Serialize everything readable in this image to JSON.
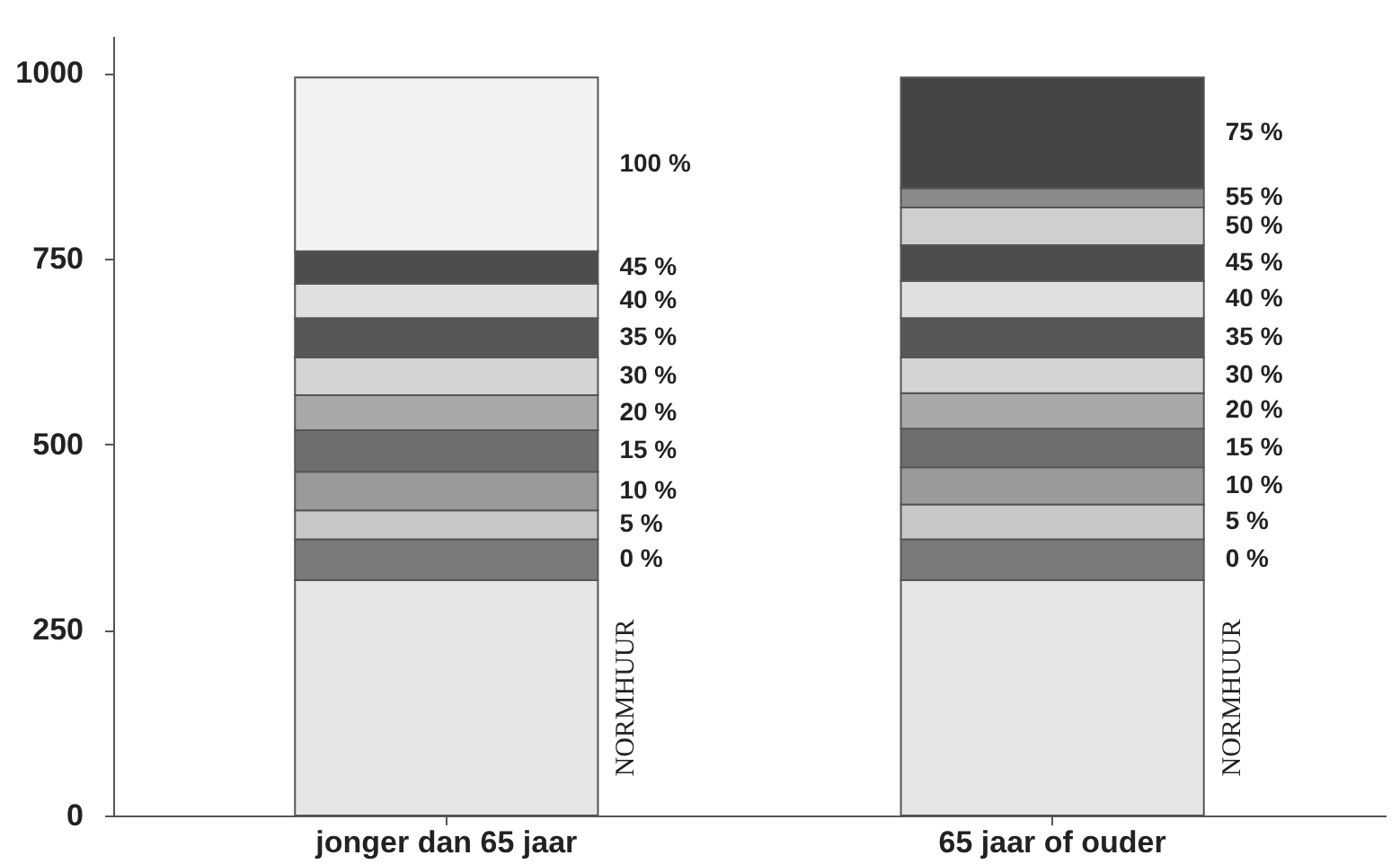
{
  "chart_data": {
    "type": "bar",
    "stacked": true,
    "categories": [
      "jonger dan 65 jaar",
      "65 jaar of ouder"
    ],
    "series": [
      {
        "name": "NORMHUUR",
        "color": "#e6e6e6",
        "values": [
          317,
          317
        ]
      },
      {
        "name": "0 %",
        "color": "#7a7a7a",
        "values": [
          55,
          55
        ]
      },
      {
        "name": "5 %",
        "color": "#c8c8c8",
        "values": [
          39,
          47
        ]
      },
      {
        "name": "10 %",
        "color": "#9a9a9a",
        "values": [
          52,
          50
        ]
      },
      {
        "name": "15 %",
        "color": "#6e6e6e",
        "values": [
          56,
          52
        ]
      },
      {
        "name": "20 %",
        "color": "#a8a8a8",
        "values": [
          47,
          48
        ]
      },
      {
        "name": "30 %",
        "color": "#d4d4d4",
        "values": [
          51,
          48
        ]
      },
      {
        "name": "35 %",
        "color": "#575757",
        "values": [
          53,
          53
        ]
      },
      {
        "name": "40 %",
        "color": "#e0e0e0",
        "values": [
          46,
          50
        ]
      },
      {
        "name": "45 %",
        "color": "#4d4d4d",
        "values": [
          44,
          48
        ]
      },
      {
        "name": "50 %",
        "color": "#cfcfcf",
        "values": [
          null,
          51
        ]
      },
      {
        "name": "55 %",
        "color": "#8a8a8a",
        "values": [
          null,
          26
        ]
      },
      {
        "name": "75 %",
        "color": "#454545",
        "values": [
          null,
          149
        ]
      },
      {
        "name": "100 %",
        "color": "#f2f2f2",
        "values": [
          234,
          null
        ]
      }
    ],
    "ylim": [
      0,
      1050
    ],
    "yticks": [
      0,
      250,
      500,
      750,
      1000
    ],
    "grid": false,
    "legend": false
  }
}
